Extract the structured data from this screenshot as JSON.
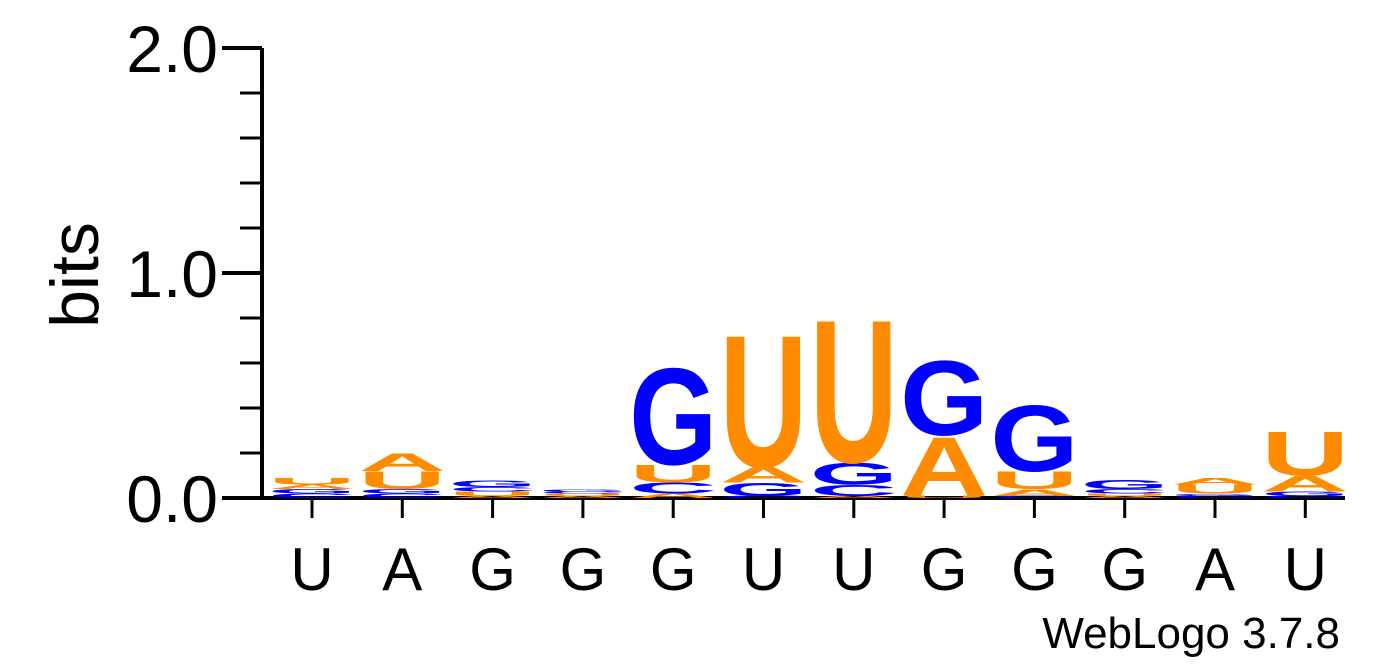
{
  "chart_data": {
    "type": "sequence-logo",
    "ylabel": "bits",
    "ylim": [
      0,
      2.0
    ],
    "yticks": [
      {
        "value": 0.0,
        "label": "0.0"
      },
      {
        "value": 1.0,
        "label": "1.0"
      },
      {
        "value": 2.0,
        "label": "2.0"
      }
    ],
    "y_minor_step": 0.2,
    "xlabels": [
      "U",
      "A",
      "G",
      "G",
      "G",
      "U",
      "U",
      "G",
      "G",
      "G",
      "A",
      "U"
    ],
    "colors": {
      "A": "#ff8c00",
      "U": "#ff8c00",
      "G": "#0000ff",
      "C": "#0000ff"
    },
    "stacks": [
      {
        "position": 1,
        "letters": [
          {
            "base": "C",
            "bits": 0.02
          },
          {
            "base": "G",
            "bits": 0.02
          },
          {
            "base": "A",
            "bits": 0.02
          },
          {
            "base": "U",
            "bits": 0.03
          }
        ]
      },
      {
        "position": 2,
        "letters": [
          {
            "base": "C",
            "bits": 0.02
          },
          {
            "base": "G",
            "bits": 0.02
          },
          {
            "base": "U",
            "bits": 0.08
          },
          {
            "base": "A",
            "bits": 0.08
          }
        ]
      },
      {
        "position": 3,
        "letters": [
          {
            "base": "A",
            "bits": 0.01
          },
          {
            "base": "U",
            "bits": 0.02
          },
          {
            "base": "C",
            "bits": 0.02
          },
          {
            "base": "G",
            "bits": 0.03
          }
        ]
      },
      {
        "position": 4,
        "letters": [
          {
            "base": "A",
            "bits": 0.01
          },
          {
            "base": "U",
            "bits": 0.01
          },
          {
            "base": "C",
            "bits": 0.01
          },
          {
            "base": "G",
            "bits": 0.01
          }
        ]
      },
      {
        "position": 5,
        "letters": [
          {
            "base": "A",
            "bits": 0.02
          },
          {
            "base": "C",
            "bits": 0.05
          },
          {
            "base": "U",
            "bits": 0.08
          },
          {
            "base": "G",
            "bits": 0.44
          }
        ]
      },
      {
        "position": 6,
        "letters": [
          {
            "base": "C",
            "bits": 0.01
          },
          {
            "base": "G",
            "bits": 0.06
          },
          {
            "base": "A",
            "bits": 0.07
          },
          {
            "base": "U",
            "bits": 0.6
          }
        ]
      },
      {
        "position": 7,
        "letters": [
          {
            "base": "A",
            "bits": 0.01
          },
          {
            "base": "C",
            "bits": 0.05
          },
          {
            "base": "G",
            "bits": 0.1
          },
          {
            "base": "U",
            "bits": 0.65
          }
        ]
      },
      {
        "position": 8,
        "letters": [
          {
            "base": "U",
            "bits": 0.01
          },
          {
            "base": "A",
            "bits": 0.27
          },
          {
            "base": "G",
            "bits": 0.34
          }
        ]
      },
      {
        "position": 9,
        "letters": [
          {
            "base": "C",
            "bits": 0.01
          },
          {
            "base": "A",
            "bits": 0.03
          },
          {
            "base": "U",
            "bits": 0.08
          },
          {
            "base": "G",
            "bits": 0.3
          }
        ]
      },
      {
        "position": 10,
        "letters": [
          {
            "base": "A",
            "bits": 0.01
          },
          {
            "base": "U",
            "bits": 0.01
          },
          {
            "base": "C",
            "bits": 0.02
          },
          {
            "base": "G",
            "bits": 0.04
          }
        ]
      },
      {
        "position": 11,
        "letters": [
          {
            "base": "C",
            "bits": 0.01
          },
          {
            "base": "G",
            "bits": 0.01
          },
          {
            "base": "U",
            "bits": 0.04
          },
          {
            "base": "A",
            "bits": 0.03
          }
        ]
      },
      {
        "position": 12,
        "letters": [
          {
            "base": "C",
            "bits": 0.01
          },
          {
            "base": "G",
            "bits": 0.02
          },
          {
            "base": "A",
            "bits": 0.07
          },
          {
            "base": "U",
            "bits": 0.2
          }
        ]
      }
    ]
  },
  "footer": {
    "credit": "WebLogo 3.7.8"
  }
}
